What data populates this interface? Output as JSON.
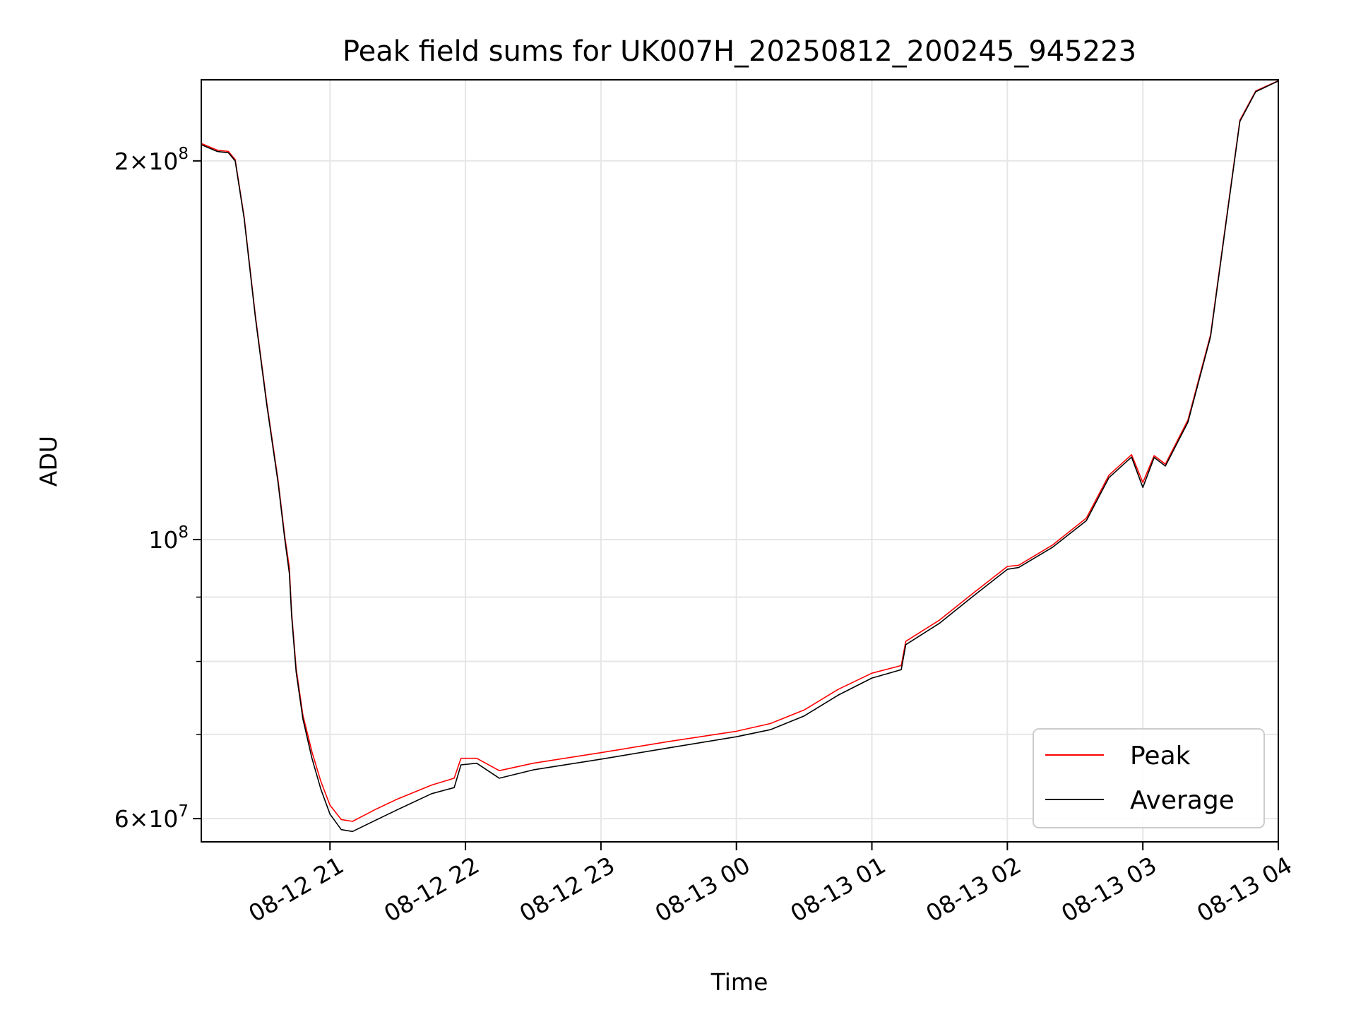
{
  "chart_data": {
    "type": "line",
    "title": "Peak field sums for UK007H_20250812_200245_945223",
    "xlabel": "Time",
    "ylabel": "ADU",
    "x_ticks": [
      "08-12 21",
      "08-12 22",
      "08-12 23",
      "08-13 00",
      "08-13 01",
      "08-13 02",
      "08-13 03",
      "08-13 04"
    ],
    "x_tick_rotation_deg": 30,
    "y_scale": "log",
    "ylim": [
      57500000,
      232000000
    ],
    "y_major_ticks": [
      {
        "value": 60000000,
        "mantissa": "6",
        "exp": "7"
      },
      {
        "value": 100000000,
        "mantissa": "",
        "exp": "8"
      },
      {
        "value": 200000000,
        "mantissa": "2",
        "exp": "8"
      }
    ],
    "y_minor_grid": [
      70000000,
      80000000,
      90000000
    ],
    "grid": true,
    "legend": {
      "position": "lower-right",
      "entries": [
        "Peak",
        "Average"
      ]
    },
    "colors": {
      "peak": "#ff0000",
      "average": "#000000"
    },
    "series": [
      {
        "name": "Average",
        "color": "#000000",
        "points": [
          [
            "2025-08-12 20:03",
            206000000
          ],
          [
            "2025-08-12 20:10",
            203500000
          ],
          [
            "2025-08-12 20:15",
            203000000
          ],
          [
            "2025-08-12 20:18",
            200000000
          ],
          [
            "2025-08-12 20:22",
            180000000
          ],
          [
            "2025-08-12 20:27",
            150000000
          ],
          [
            "2025-08-12 20:32",
            128000000
          ],
          [
            "2025-08-12 20:37",
            111000000
          ],
          [
            "2025-08-12 20:40",
            100000000
          ],
          [
            "2025-08-12 20:42",
            94000000
          ],
          [
            "2025-08-12 20:43",
            87000000
          ],
          [
            "2025-08-12 20:45",
            78500000
          ],
          [
            "2025-08-12 20:48",
            72000000
          ],
          [
            "2025-08-12 20:52",
            67000000
          ],
          [
            "2025-08-12 20:56",
            63300000
          ],
          [
            "2025-08-12 21:00",
            60500000
          ],
          [
            "2025-08-12 21:05",
            58800000
          ],
          [
            "2025-08-12 21:10",
            58600000
          ],
          [
            "2025-08-12 21:20",
            59800000
          ],
          [
            "2025-08-12 21:30",
            61000000
          ],
          [
            "2025-08-12 21:45",
            62800000
          ],
          [
            "2025-08-12 21:55",
            63500000
          ],
          [
            "2025-08-12 21:58",
            66200000
          ],
          [
            "2025-08-12 22:05",
            66400000
          ],
          [
            "2025-08-12 22:15",
            64600000
          ],
          [
            "2025-08-12 22:30",
            65600000
          ],
          [
            "2025-08-12 23:00",
            66900000
          ],
          [
            "2025-08-12 23:30",
            68300000
          ],
          [
            "2025-08-13 00:00",
            69700000
          ],
          [
            "2025-08-13 00:15",
            70600000
          ],
          [
            "2025-08-13 00:30",
            72400000
          ],
          [
            "2025-08-13 00:45",
            75200000
          ],
          [
            "2025-08-13 01:00",
            77600000
          ],
          [
            "2025-08-13 01:13",
            78800000
          ],
          [
            "2025-08-13 01:15",
            82500000
          ],
          [
            "2025-08-13 01:30",
            85800000
          ],
          [
            "2025-08-13 01:45",
            90200000
          ],
          [
            "2025-08-13 02:00",
            94700000
          ],
          [
            "2025-08-13 02:05",
            95000000
          ],
          [
            "2025-08-13 02:20",
            98600000
          ],
          [
            "2025-08-13 02:35",
            103500000
          ],
          [
            "2025-08-13 02:45",
            112000000
          ],
          [
            "2025-08-13 02:55",
            116300000
          ],
          [
            "2025-08-13 03:00",
            110000000
          ],
          [
            "2025-08-13 03:05",
            116200000
          ],
          [
            "2025-08-13 03:10",
            114400000
          ],
          [
            "2025-08-13 03:20",
            124000000
          ],
          [
            "2025-08-13 03:30",
            145000000
          ],
          [
            "2025-08-13 03:38",
            185000000
          ],
          [
            "2025-08-13 03:43",
            215000000
          ],
          [
            "2025-08-13 03:50",
            227000000
          ],
          [
            "2025-08-13 04:00",
            231500000
          ]
        ]
      },
      {
        "name": "Peak",
        "color": "#ff0000",
        "points": [
          [
            "2025-08-12 20:03",
            206500000
          ],
          [
            "2025-08-12 20:10",
            204000000
          ],
          [
            "2025-08-12 20:15",
            203500000
          ],
          [
            "2025-08-12 20:18",
            200500000
          ],
          [
            "2025-08-12 20:22",
            180500000
          ],
          [
            "2025-08-12 20:27",
            150500000
          ],
          [
            "2025-08-12 20:32",
            128500000
          ],
          [
            "2025-08-12 20:37",
            111500000
          ],
          [
            "2025-08-12 20:40",
            100500000
          ],
          [
            "2025-08-12 20:42",
            95000000
          ],
          [
            "2025-08-12 20:43",
            87500000
          ],
          [
            "2025-08-12 20:45",
            79000000
          ],
          [
            "2025-08-12 20:48",
            72500000
          ],
          [
            "2025-08-12 20:52",
            67800000
          ],
          [
            "2025-08-12 20:56",
            64200000
          ],
          [
            "2025-08-12 21:00",
            61500000
          ],
          [
            "2025-08-12 21:05",
            59900000
          ],
          [
            "2025-08-12 21:10",
            59700000
          ],
          [
            "2025-08-12 21:20",
            61000000
          ],
          [
            "2025-08-12 21:30",
            62200000
          ],
          [
            "2025-08-12 21:45",
            63800000
          ],
          [
            "2025-08-12 21:55",
            64600000
          ],
          [
            "2025-08-12 21:58",
            67000000
          ],
          [
            "2025-08-12 22:05",
            67000000
          ],
          [
            "2025-08-12 22:15",
            65500000
          ],
          [
            "2025-08-12 22:30",
            66400000
          ],
          [
            "2025-08-12 23:00",
            67700000
          ],
          [
            "2025-08-12 23:30",
            69100000
          ],
          [
            "2025-08-13 00:00",
            70400000
          ],
          [
            "2025-08-13 00:15",
            71400000
          ],
          [
            "2025-08-13 00:30",
            73200000
          ],
          [
            "2025-08-13 00:45",
            76000000
          ],
          [
            "2025-08-13 01:00",
            78300000
          ],
          [
            "2025-08-13 01:13",
            79400000
          ],
          [
            "2025-08-13 01:15",
            83000000
          ],
          [
            "2025-08-13 01:30",
            86300000
          ],
          [
            "2025-08-13 01:45",
            90700000
          ],
          [
            "2025-08-13 02:00",
            95200000
          ],
          [
            "2025-08-13 02:05",
            95400000
          ],
          [
            "2025-08-13 02:20",
            99000000
          ],
          [
            "2025-08-13 02:35",
            104000000
          ],
          [
            "2025-08-13 02:45",
            112500000
          ],
          [
            "2025-08-13 02:55",
            116800000
          ],
          [
            "2025-08-13 03:00",
            111000000
          ],
          [
            "2025-08-13 03:05",
            116600000
          ],
          [
            "2025-08-13 03:10",
            114800000
          ],
          [
            "2025-08-13 03:20",
            124500000
          ],
          [
            "2025-08-13 03:30",
            145500000
          ],
          [
            "2025-08-13 03:38",
            185500000
          ],
          [
            "2025-08-13 03:43",
            215500000
          ],
          [
            "2025-08-13 03:50",
            227300000
          ],
          [
            "2025-08-13 04:00",
            231600000
          ]
        ]
      }
    ]
  }
}
